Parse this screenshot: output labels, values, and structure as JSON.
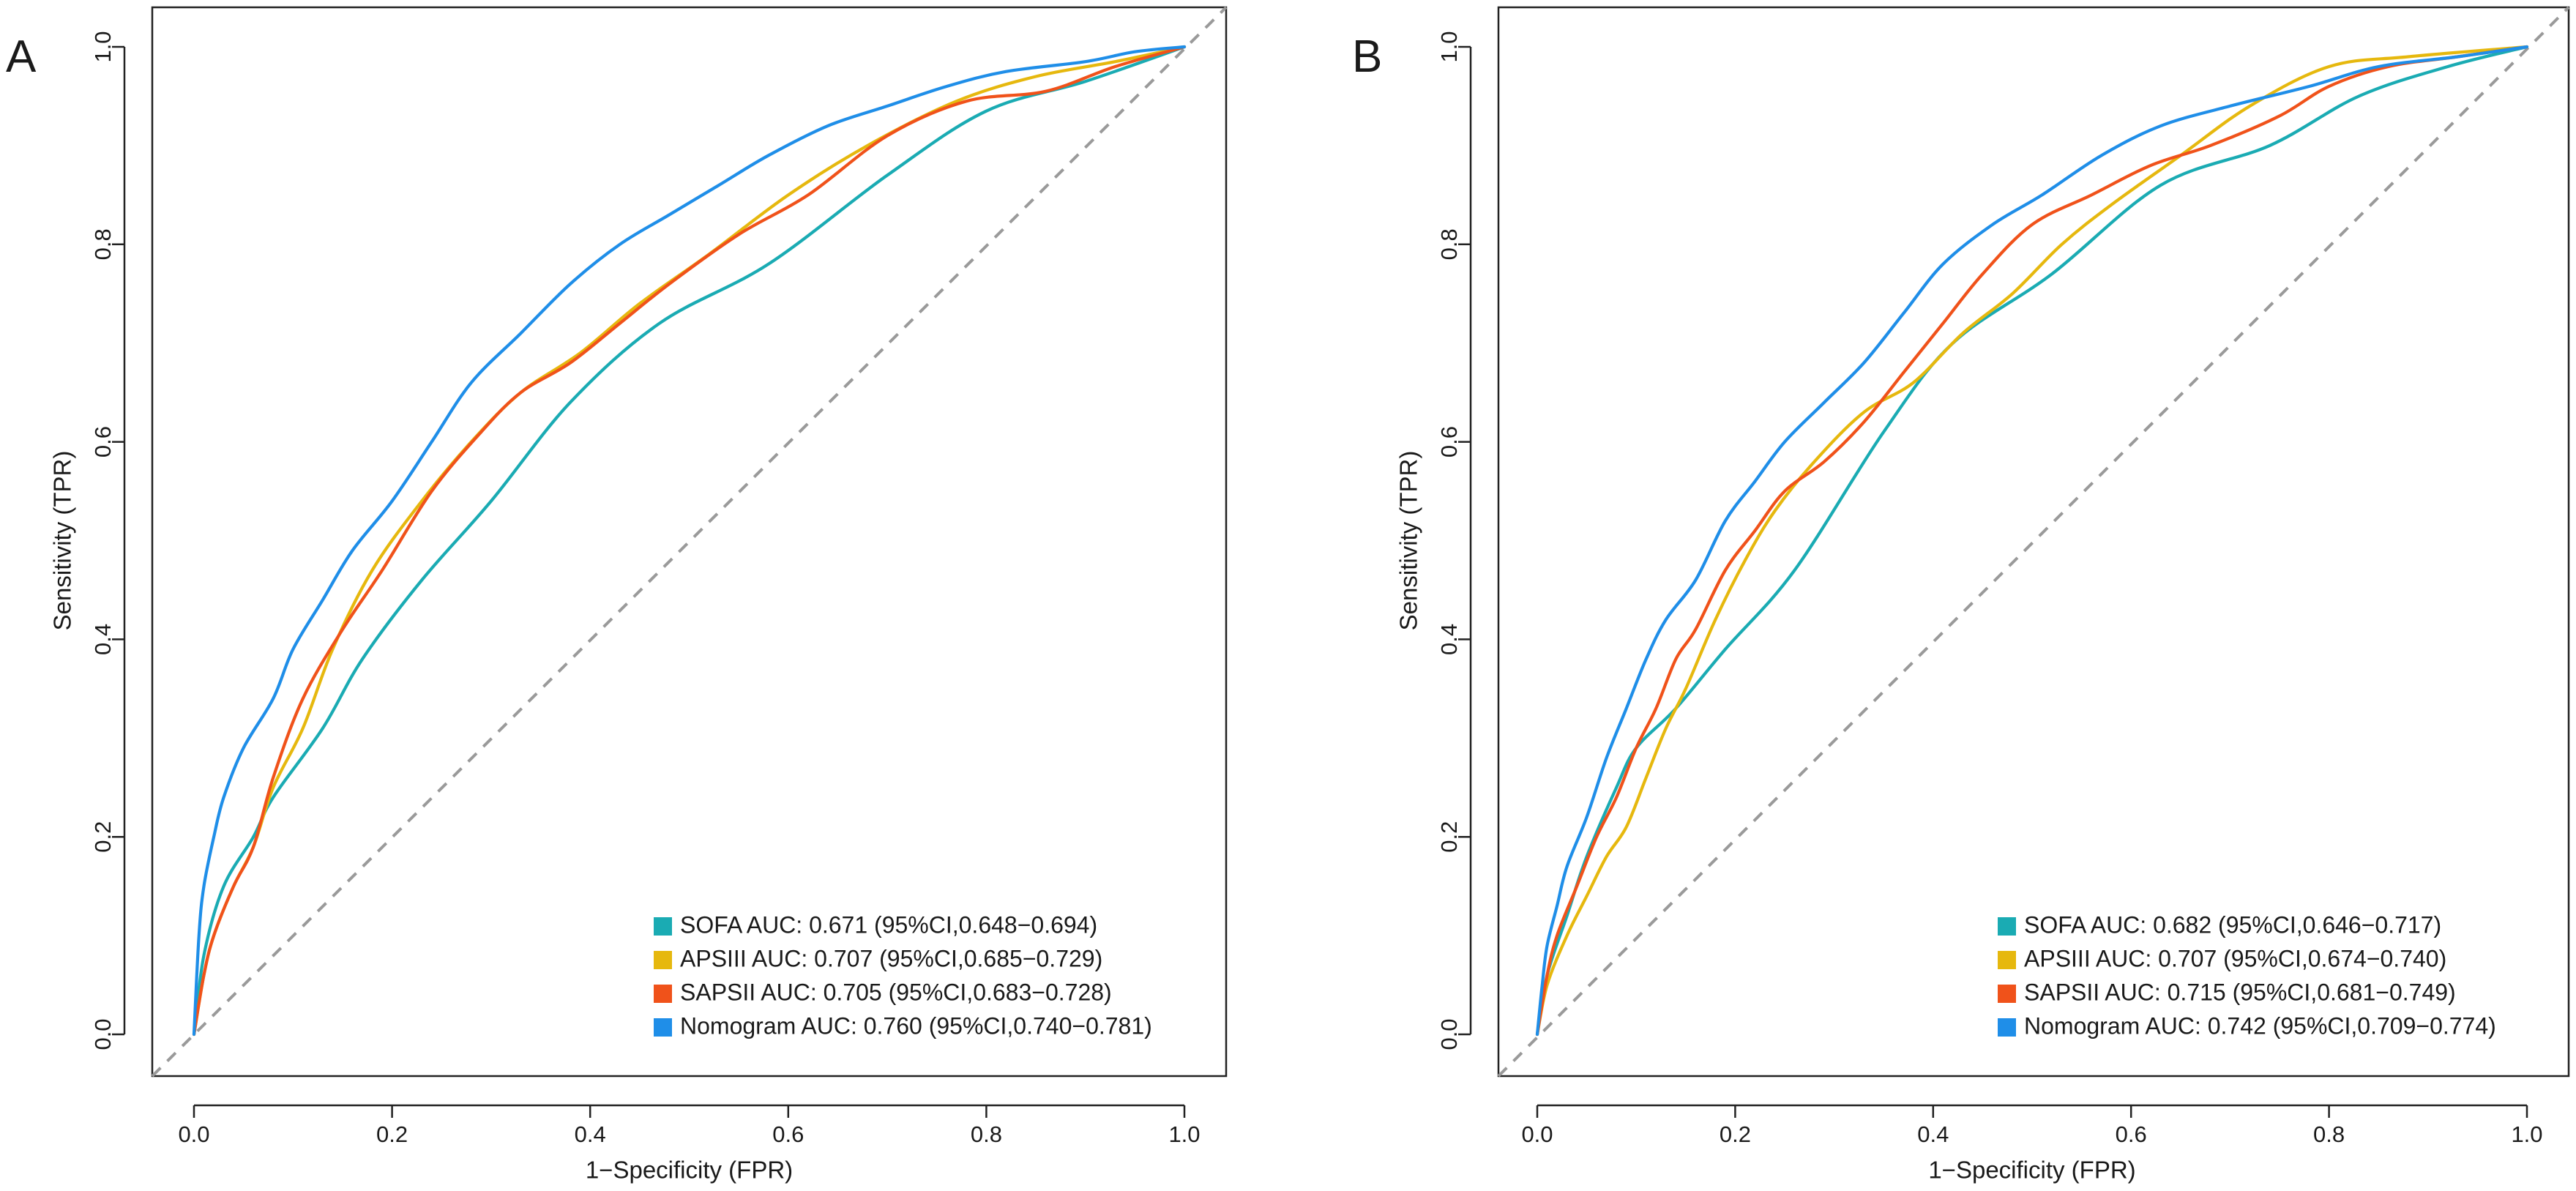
{
  "chart_data": [
    {
      "type": "line",
      "panel_label": "A",
      "xlabel": "1−Specificity (FPR)",
      "ylabel": "Sensitivity (TPR)",
      "xlim": [
        0,
        1
      ],
      "ylim": [
        0,
        1
      ],
      "xticks": [
        "0.0",
        "0.2",
        "0.4",
        "0.6",
        "0.8",
        "1.0"
      ],
      "yticks": [
        "0.0",
        "0.2",
        "0.4",
        "0.6",
        "0.8",
        "1.0"
      ],
      "reference_line": "diagonal dashed",
      "legend_position": "bottom-right",
      "series": [
        {
          "name": "SOFA AUC: 0.671 (95%CI,0.648−0.694)",
          "color": "#1aabb3",
          "x": [
            0,
            0.01,
            0.03,
            0.06,
            0.08,
            0.13,
            0.17,
            0.23,
            0.3,
            0.38,
            0.47,
            0.58,
            0.7,
            0.8,
            0.9,
            1.0
          ],
          "y": [
            0,
            0.08,
            0.15,
            0.2,
            0.24,
            0.31,
            0.38,
            0.46,
            0.54,
            0.64,
            0.72,
            0.78,
            0.87,
            0.935,
            0.965,
            1.0
          ]
        },
        {
          "name": "APSIII AUC: 0.707 (95%CI,0.685−0.729)",
          "color": "#e6b80e",
          "x": [
            0,
            0.01,
            0.02,
            0.04,
            0.06,
            0.08,
            0.11,
            0.14,
            0.18,
            0.23,
            0.28,
            0.33,
            0.39,
            0.45,
            0.52,
            0.6,
            0.68,
            0.77,
            0.85,
            0.93,
            1.0
          ],
          "y": [
            0,
            0.06,
            0.1,
            0.15,
            0.19,
            0.25,
            0.31,
            0.39,
            0.47,
            0.54,
            0.6,
            0.65,
            0.69,
            0.74,
            0.79,
            0.85,
            0.9,
            0.945,
            0.97,
            0.985,
            1.0
          ]
        },
        {
          "name": "SAPSII AUC: 0.705 (95%CI,0.683−0.728)",
          "color": "#f0521a",
          "x": [
            0,
            0.01,
            0.02,
            0.04,
            0.06,
            0.08,
            0.11,
            0.15,
            0.19,
            0.24,
            0.29,
            0.33,
            0.38,
            0.43,
            0.48,
            0.55,
            0.62,
            0.7,
            0.78,
            0.86,
            0.93,
            1.0
          ],
          "y": [
            0,
            0.06,
            0.1,
            0.15,
            0.19,
            0.26,
            0.34,
            0.41,
            0.47,
            0.55,
            0.61,
            0.65,
            0.68,
            0.72,
            0.76,
            0.81,
            0.85,
            0.91,
            0.945,
            0.955,
            0.98,
            1.0
          ]
        },
        {
          "name": "Nomogram AUC: 0.760 (95%CI,0.740−0.781)",
          "color": "#1f8ee8",
          "x": [
            0,
            0.005,
            0.01,
            0.02,
            0.03,
            0.05,
            0.08,
            0.1,
            0.13,
            0.16,
            0.2,
            0.24,
            0.28,
            0.33,
            0.38,
            0.43,
            0.48,
            0.53,
            0.58,
            0.64,
            0.7,
            0.76,
            0.82,
            0.9,
            0.95,
            1.0
          ],
          "y": [
            0,
            0.1,
            0.15,
            0.2,
            0.24,
            0.29,
            0.34,
            0.39,
            0.44,
            0.49,
            0.54,
            0.6,
            0.66,
            0.71,
            0.76,
            0.8,
            0.83,
            0.86,
            0.89,
            0.92,
            0.94,
            0.96,
            0.975,
            0.985,
            0.995,
            1.0
          ]
        }
      ]
    },
    {
      "type": "line",
      "panel_label": "B",
      "xlabel": "1−Specificity (FPR)",
      "ylabel": "Sensitivity (TPR)",
      "xlim": [
        0,
        1
      ],
      "ylim": [
        0,
        1
      ],
      "xticks": [
        "0.0",
        "0.2",
        "0.4",
        "0.6",
        "0.8",
        "1.0"
      ],
      "yticks": [
        "0.0",
        "0.2",
        "0.4",
        "0.6",
        "0.8",
        "1.0"
      ],
      "reference_line": "diagonal dashed",
      "legend_position": "bottom-right",
      "series": [
        {
          "name": "SOFA AUC: 0.682 (95%CI,0.646−0.717)",
          "color": "#1aabb3",
          "x": [
            0,
            0.01,
            0.03,
            0.05,
            0.08,
            0.1,
            0.14,
            0.19,
            0.26,
            0.35,
            0.42,
            0.52,
            0.63,
            0.74,
            0.83,
            0.92,
            1.0
          ],
          "y": [
            0,
            0.06,
            0.12,
            0.18,
            0.25,
            0.29,
            0.33,
            0.39,
            0.47,
            0.61,
            0.7,
            0.77,
            0.86,
            0.9,
            0.95,
            0.98,
            1.0
          ]
        },
        {
          "name": "APSIII AUC: 0.707 (95%CI,0.674−0.740)",
          "color": "#e6b80e",
          "x": [
            0,
            0.01,
            0.03,
            0.05,
            0.07,
            0.09,
            0.11,
            0.13,
            0.15,
            0.18,
            0.21,
            0.24,
            0.28,
            0.33,
            0.38,
            0.43,
            0.48,
            0.53,
            0.58,
            0.65,
            0.72,
            0.8,
            0.88,
            1.0
          ],
          "y": [
            0,
            0.05,
            0.1,
            0.14,
            0.18,
            0.21,
            0.26,
            0.31,
            0.35,
            0.42,
            0.48,
            0.53,
            0.58,
            0.63,
            0.66,
            0.71,
            0.75,
            0.8,
            0.84,
            0.89,
            0.94,
            0.98,
            0.99,
            1.0
          ]
        },
        {
          "name": "SAPSII AUC: 0.715 (95%CI,0.681−0.749)",
          "color": "#f0521a",
          "x": [
            0,
            0.01,
            0.02,
            0.04,
            0.06,
            0.08,
            0.1,
            0.12,
            0.14,
            0.16,
            0.19,
            0.22,
            0.25,
            0.29,
            0.33,
            0.37,
            0.41,
            0.45,
            0.5,
            0.56,
            0.62,
            0.68,
            0.75,
            0.8,
            0.86,
            0.93,
            1.0
          ],
          "y": [
            0,
            0.06,
            0.1,
            0.15,
            0.2,
            0.24,
            0.29,
            0.33,
            0.38,
            0.41,
            0.47,
            0.51,
            0.55,
            0.58,
            0.62,
            0.67,
            0.72,
            0.77,
            0.82,
            0.85,
            0.88,
            0.9,
            0.93,
            0.96,
            0.98,
            0.99,
            1.0
          ]
        },
        {
          "name": "Nomogram AUC: 0.742 (95%CI,0.709−0.774)",
          "color": "#1f8ee8",
          "x": [
            0,
            0.005,
            0.01,
            0.02,
            0.03,
            0.05,
            0.07,
            0.09,
            0.11,
            0.13,
            0.16,
            0.19,
            0.22,
            0.25,
            0.29,
            0.33,
            0.37,
            0.41,
            0.46,
            0.51,
            0.57,
            0.63,
            0.7,
            0.78,
            0.85,
            0.93,
            1.0
          ],
          "y": [
            0,
            0.05,
            0.09,
            0.13,
            0.17,
            0.22,
            0.28,
            0.33,
            0.38,
            0.42,
            0.46,
            0.52,
            0.56,
            0.6,
            0.64,
            0.68,
            0.73,
            0.78,
            0.82,
            0.85,
            0.89,
            0.92,
            0.94,
            0.96,
            0.98,
            0.99,
            1.0
          ]
        }
      ]
    }
  ]
}
